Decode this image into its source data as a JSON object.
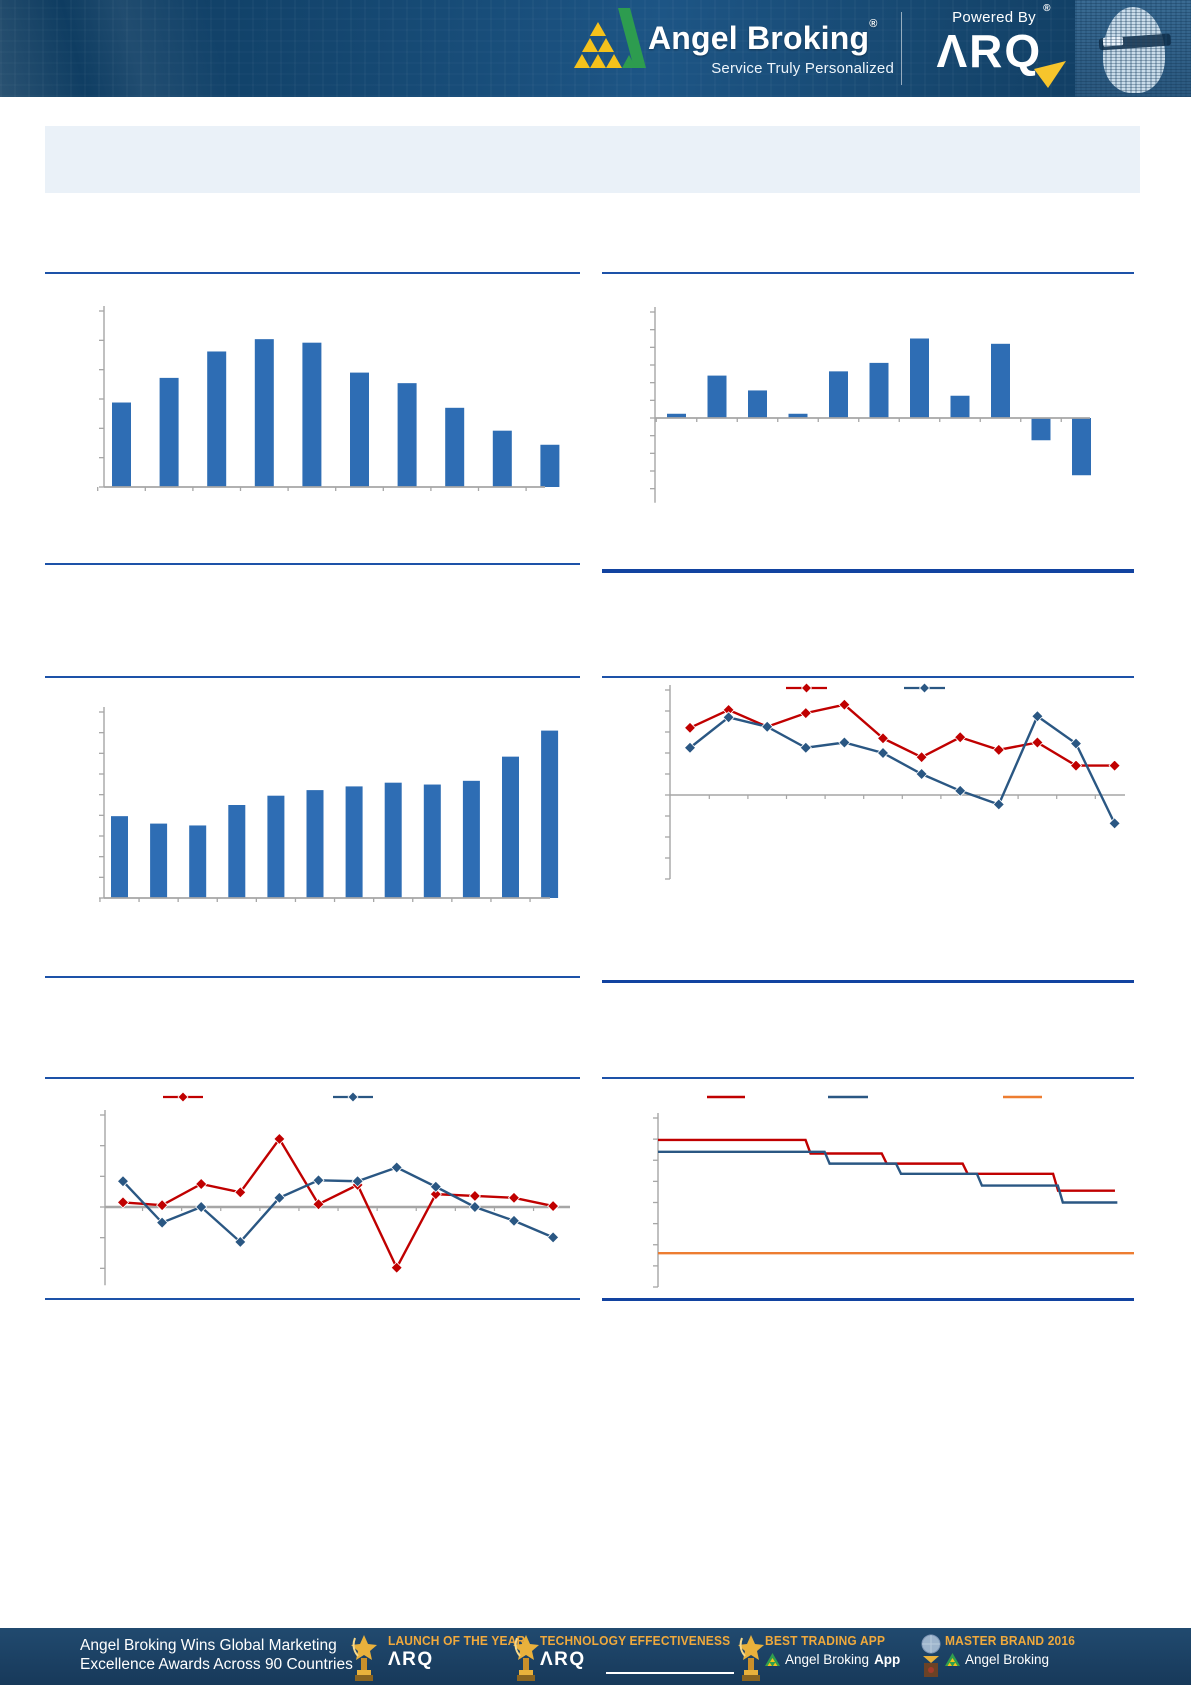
{
  "header": {
    "brand": "Angel Broking",
    "brand_reg": "®",
    "tagline": "Service Truly Personalized",
    "powered_by": "Powered By",
    "arq_wordmark": "ΛRQ",
    "arq_reg": "®"
  },
  "colors": {
    "header_blue": "#16466f",
    "divider_blue_thin": "#1d52a8",
    "divider_blue_thick": "#1243a0",
    "bar_blue": "#2e6db4",
    "series_red": "#c00000",
    "series_blue": "#2a5783",
    "series_orange": "#ed7d31",
    "axis_gray": "#a6a6a6",
    "banner_bg": "#eaf1f8",
    "footer_bg": "#1d4164",
    "award_gold": "#f0a93c"
  },
  "chart_data": [
    {
      "type": "bar",
      "position": "top-left",
      "bar_color": "#2e6db4",
      "values": [
        48,
        62,
        77,
        84,
        82,
        65,
        59,
        45,
        32,
        24
      ],
      "ylim": [
        0,
        100
      ],
      "grid": false,
      "axis_labels_visible": false
    },
    {
      "type": "bar",
      "position": "top-right",
      "bar_color": "#2e6db4",
      "values": [
        4,
        40,
        26,
        4,
        44,
        52,
        75,
        21,
        70,
        -21,
        -54
      ],
      "ylim": [
        -80,
        100
      ],
      "grid": false,
      "axis_labels_visible": false
    },
    {
      "type": "bar",
      "position": "middle-left",
      "bar_color": "#2e6db4",
      "values": [
        44,
        40,
        39,
        50,
        55,
        58,
        60,
        62,
        61,
        63,
        76,
        90
      ],
      "ylim": [
        0,
        100
      ],
      "grid": false,
      "axis_labels_visible": false
    },
    {
      "type": "line",
      "position": "middle-right",
      "marker": "diamond",
      "ylim": [
        -80,
        100
      ],
      "legend": {
        "position": "top",
        "labels_visible": false
      },
      "series": [
        {
          "name": "series-red",
          "color": "#c00000",
          "values": [
            64,
            81,
            65,
            78,
            86,
            54,
            36,
            55,
            43,
            50,
            28,
            28
          ]
        },
        {
          "name": "series-blue",
          "color": "#2a5783",
          "values": [
            45,
            74,
            65,
            45,
            50,
            40,
            20,
            4,
            -9,
            75,
            49,
            -27
          ]
        }
      ],
      "axis_labels_visible": false
    },
    {
      "type": "line",
      "position": "bottom-left",
      "marker": "diamond",
      "ylim": [
        -85,
        100
      ],
      "legend": {
        "position": "top",
        "labels_visible": false
      },
      "series": [
        {
          "name": "series-red",
          "color": "#c00000",
          "values": [
            5,
            2,
            25,
            16,
            74,
            3,
            24,
            -66,
            14,
            12,
            10,
            1
          ]
        },
        {
          "name": "series-blue",
          "color": "#2a5783",
          "values": [
            28,
            -17,
            0,
            -38,
            10,
            29,
            28,
            43,
            22,
            0,
            -15,
            -33
          ]
        }
      ],
      "axis_labels_visible": false
    },
    {
      "type": "step",
      "position": "bottom-right",
      "ylim": [
        0,
        100
      ],
      "legend": {
        "position": "top",
        "labels_visible": false
      },
      "series": [
        {
          "name": "step-red",
          "color": "#c00000",
          "levels": [
            87,
            79,
            73,
            67,
            57
          ],
          "breaks_x": [
            0.31,
            0.47,
            0.64,
            0.83
          ],
          "x_end": 0.96
        },
        {
          "name": "step-blue",
          "color": "#2a5783",
          "levels": [
            80,
            73,
            67,
            60,
            50
          ],
          "breaks_x": [
            0.35,
            0.5,
            0.67,
            0.84
          ],
          "x_end": 0.965
        },
        {
          "name": "flat-orange",
          "color": "#ed7d31",
          "levels": [
            20
          ],
          "breaks_x": [],
          "x_end": 1.0
        }
      ],
      "axis_labels_visible": false
    }
  ],
  "footer": {
    "headline_line1": "Angel Broking Wins Global Marketing",
    "headline_line2": "Excellence Awards Across 90 Countries",
    "awards": [
      {
        "title": "LAUNCH OF THE YEAR",
        "subtitle": "ΛRQ"
      },
      {
        "title": "TECHNOLOGY EFFECTIVENESS",
        "subtitle": "ΛRQ"
      },
      {
        "title": "BEST TRADING APP",
        "subtitle": "Angel Broking",
        "subtitle_bold": "App"
      },
      {
        "title": "MASTER BRAND 2016",
        "subtitle": "Angel Broking"
      }
    ]
  }
}
